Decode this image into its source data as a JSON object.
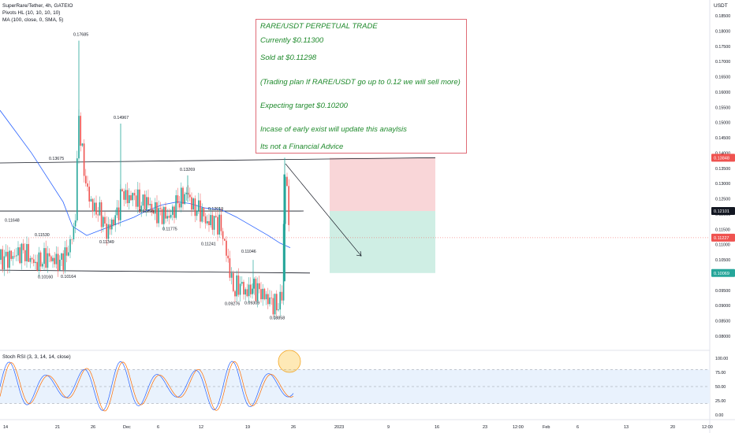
{
  "header": {
    "symbol_line": "SuperRare/Tether, 4h, GATEIO",
    "pivots_line": "Pivots HL (10, 10, 10, 10)",
    "ma_line": "MA (100, close, 0, SMA, 5)"
  },
  "currency": "USDT",
  "note": {
    "lines": [
      "RARE/USDT PERPETUAL TRADE",
      "Currently $0.11300",
      "Sold at $0.11298",
      "(Trading plan If RARE/USDT go up to 0.12 we will sell more)",
      "Expecting target $0.10200",
      "Incase of early exist will update this anaylsis",
      "Its not a Financial Advice"
    ]
  },
  "oscillator": {
    "title": "Stoch RSI (3, 3, 14, 14, close)"
  },
  "colors": {
    "up": "#26a69a",
    "down": "#ef5350",
    "ma": "#2962ff",
    "stoch_k": "#2962ff",
    "stoch_d": "#ff6d00",
    "stop_zone": "#f9d6d8",
    "target_zone": "#cfeee4",
    "note_text": "#1f8a2c"
  },
  "chart_data": {
    "type": "candlestick",
    "title": "SuperRare/Tether, 4h, GATEIO",
    "ylim": [
      0.0775,
      0.19
    ],
    "y_ticks": [
      "0.18500",
      "0.18000",
      "0.17500",
      "0.17000",
      "0.16500",
      "0.16000",
      "0.15500",
      "0.15000",
      "0.14500",
      "0.14000",
      "0.13500",
      "0.13000",
      "0.12500",
      "0.12000",
      "0.11500",
      "0.11000",
      "0.10500",
      "0.10000",
      "0.09500",
      "0.09000",
      "0.08500",
      "0.08000"
    ],
    "x_ticks": [
      "14",
      "21",
      "26",
      "Dec",
      "6",
      "12",
      "19",
      "26",
      "2023",
      "9",
      "16",
      "23",
      "12:00",
      "Feb",
      "6",
      "13",
      "20",
      "12:00"
    ],
    "pivots": [
      {
        "label": "0.17685",
        "value": 0.17685,
        "kind": "high"
      },
      {
        "label": "0.14967",
        "value": 0.14967,
        "kind": "high"
      },
      {
        "label": "0.13675",
        "value": 0.13675,
        "kind": "high"
      },
      {
        "label": "0.13269",
        "value": 0.13269,
        "kind": "high"
      },
      {
        "label": "0.11648",
        "value": 0.11648,
        "kind": "high"
      },
      {
        "label": "0.11530",
        "value": 0.1153,
        "kind": "low"
      },
      {
        "label": "0.12256",
        "value": 0.12256,
        "kind": "low"
      },
      {
        "label": "0.12019",
        "value": 0.12019,
        "kind": "high"
      },
      {
        "label": "0.11349",
        "value": 0.11349,
        "kind": "low"
      },
      {
        "label": "0.11775",
        "value": 0.11775,
        "kind": "low"
      },
      {
        "label": "0.11046",
        "value": 0.11046,
        "kind": "low"
      },
      {
        "label": "0.11241",
        "value": 0.11241,
        "kind": "low"
      },
      {
        "label": "0.10160",
        "value": 0.1016,
        "kind": "low"
      },
      {
        "label": "0.10164",
        "value": 0.10164,
        "kind": "low"
      },
      {
        "label": "0.09276",
        "value": 0.09276,
        "kind": "low"
      },
      {
        "label": "0.09309",
        "value": 0.09309,
        "kind": "low"
      },
      {
        "label": "0.08858",
        "value": 0.08858,
        "kind": "low"
      }
    ],
    "price_badges": [
      {
        "label": "0.13848",
        "value": 0.13848,
        "color": "#ef5350"
      },
      {
        "label": "0.12101",
        "value": 0.12101,
        "color": "#131722"
      },
      {
        "label": "0.11227",
        "value": 0.11227,
        "color": "#ef5350"
      },
      {
        "label": "0.10069",
        "value": 0.10069,
        "color": "#26a69a"
      }
    ],
    "key_levels": [
      {
        "name": "resistance",
        "from": 0.13675,
        "to": 0.13848
      },
      {
        "name": "middle",
        "from": 0.121,
        "to": 0.12101
      },
      {
        "name": "support",
        "from": 0.10164,
        "to": 0.10069
      }
    ],
    "position": {
      "entry": 0.12101,
      "stop": 0.13848,
      "target": 0.10069,
      "current": 0.11227
    },
    "oscillator_ticks": [
      "100.00",
      "75.00",
      "50.00",
      "25.00",
      "0.00"
    ],
    "oscillator_band": [
      20,
      80
    ]
  }
}
